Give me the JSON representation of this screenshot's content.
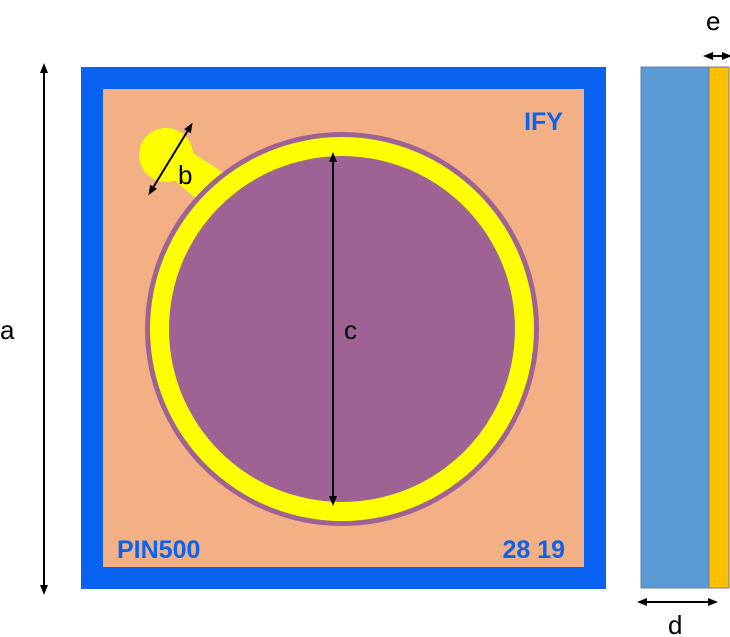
{
  "colors": {
    "frame": "#0a63f0",
    "substrate": "#f2b084",
    "ring": "#ffff00",
    "active_area": "#9e6294",
    "side_body": "#5b9bd5",
    "side_layer": "#ffc000",
    "label_blue": "#0a63f0",
    "arrow": "#000000"
  },
  "dimensions": {
    "a": "a",
    "b": "b",
    "c": "c",
    "d": "d",
    "e": "e"
  },
  "chip": {
    "label_top_right": "IFY",
    "label_bottom_left": "PIN500",
    "label_bottom_right": "28 19"
  }
}
